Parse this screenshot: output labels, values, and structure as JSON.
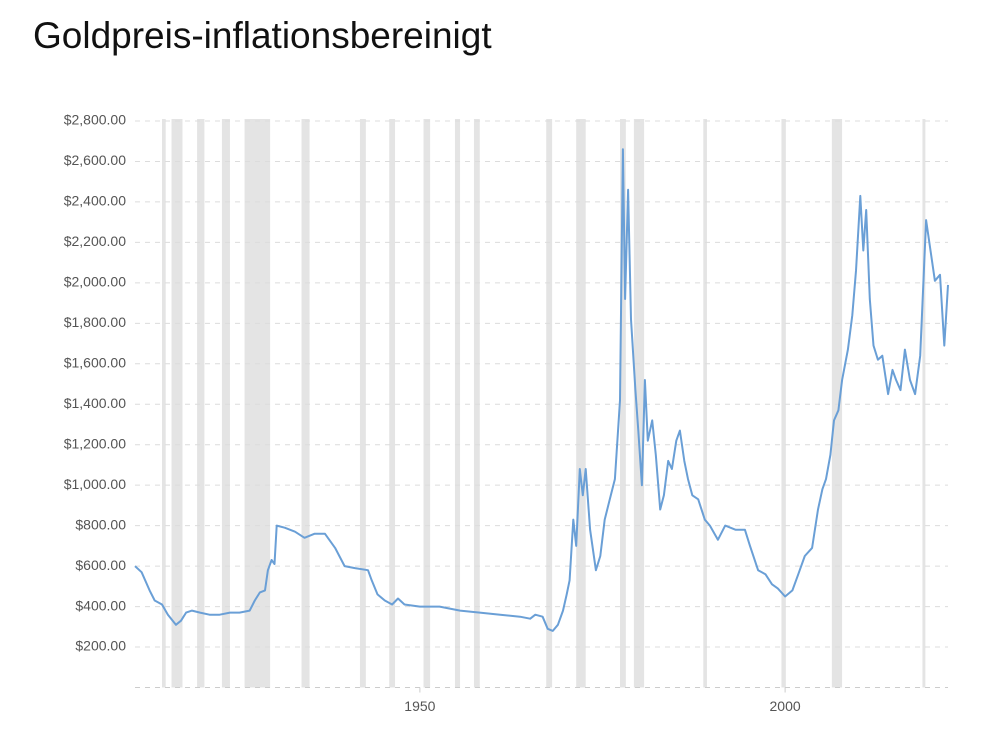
{
  "chart_data": {
    "type": "line",
    "title": "Goldpreis-inflationsbereinigt",
    "x": [
      1911.0,
      1911.9,
      1913.0,
      1913.7,
      1914.7,
      1915.5,
      1916.6,
      1917.3,
      1918.0,
      1918.8,
      1919.9,
      1921.2,
      1922.6,
      1924.0,
      1925.3,
      1926.7,
      1927.4,
      1928.1,
      1928.8,
      1929.2,
      1929.7,
      1930.1,
      1930.4,
      1931.5,
      1932.9,
      1934.2,
      1935.6,
      1937.0,
      1938.4,
      1939.7,
      1941.1,
      1942.9,
      1943.4,
      1944.2,
      1945.2,
      1946.2,
      1947.0,
      1947.9,
      1950.0,
      1952.7,
      1955.5,
      1958.2,
      1961.0,
      1963.7,
      1965.1,
      1965.8,
      1966.8,
      1967.5,
      1968.2,
      1968.9,
      1969.6,
      1970.1,
      1970.5,
      1971.0,
      1971.4,
      1971.9,
      1972.3,
      1972.7,
      1973.3,
      1974.1,
      1974.7,
      1975.3,
      1976.0,
      1976.7,
      1977.4,
      1977.8,
      1978.1,
      1978.5,
      1978.9,
      1979.5,
      1979.9,
      1980.4,
      1980.8,
      1981.2,
      1981.8,
      1982.3,
      1982.9,
      1983.4,
      1984.0,
      1984.5,
      1985.1,
      1985.6,
      1986.2,
      1986.7,
      1987.3,
      1988.1,
      1989.0,
      1989.7,
      1990.8,
      1991.8,
      1993.2,
      1994.5,
      1995.2,
      1996.3,
      1997.3,
      1998.2,
      1999.0,
      2000.0,
      2001.0,
      2001.8,
      2002.7,
      2003.7,
      2004.5,
      2005.1,
      2005.6,
      2006.2,
      2006.7,
      2007.3,
      2007.8,
      2008.6,
      2009.2,
      2009.7,
      2010.3,
      2010.7,
      2011.1,
      2011.6,
      2012.1,
      2012.7,
      2013.3,
      2014.1,
      2014.7,
      2015.2,
      2015.8,
      2016.4,
      2017.1,
      2017.8,
      2018.5,
      2019.3,
      2019.9,
      2020.5,
      2021.2,
      2021.8,
      2022.3
    ],
    "values": [
      600,
      570,
      480,
      430,
      410,
      360,
      310,
      330,
      370,
      380,
      370,
      360,
      360,
      370,
      370,
      380,
      430,
      470,
      480,
      580,
      630,
      610,
      800,
      790,
      770,
      740,
      760,
      760,
      690,
      600,
      590,
      580,
      530,
      460,
      430,
      410,
      440,
      410,
      400,
      400,
      380,
      370,
      360,
      350,
      340,
      360,
      350,
      290,
      280,
      310,
      380,
      460,
      530,
      830,
      700,
      1080,
      950,
      1080,
      780,
      580,
      650,
      830,
      930,
      1030,
      1420,
      2660,
      1920,
      2460,
      1820,
      1470,
      1270,
      1000,
      1520,
      1220,
      1320,
      1150,
      880,
      950,
      1120,
      1080,
      1220,
      1270,
      1120,
      1030,
      950,
      930,
      830,
      800,
      730,
      800,
      780,
      780,
      700,
      580,
      560,
      510,
      490,
      450,
      480,
      560,
      650,
      690,
      880,
      980,
      1030,
      1150,
      1320,
      1370,
      1520,
      1670,
      1840,
      2060,
      2430,
      2160,
      2360,
      1920,
      1690,
      1620,
      1640,
      1450,
      1570,
      1520,
      1470,
      1670,
      1520,
      1450,
      1640,
      2310,
      2160,
      2010,
      2040,
      1690,
      1990
    ],
    "color": "#6a9fd6",
    "shaded_ranges": [
      [
        1914.7,
        1915.2
      ],
      [
        1916.0,
        1917.5
      ],
      [
        1919.5,
        1920.5
      ],
      [
        1922.9,
        1924.0
      ],
      [
        1926.0,
        1929.5
      ],
      [
        1933.8,
        1934.9
      ],
      [
        1941.8,
        1942.6
      ],
      [
        1945.8,
        1946.6
      ],
      [
        1950.5,
        1951.4
      ],
      [
        1954.8,
        1955.5
      ],
      [
        1957.4,
        1958.2
      ],
      [
        1967.3,
        1968.1
      ],
      [
        1971.4,
        1972.7
      ],
      [
        1977.4,
        1978.2
      ],
      [
        1979.3,
        1980.7
      ],
      [
        1988.8,
        1989.3
      ],
      [
        1999.5,
        2000.1
      ],
      [
        2006.4,
        2007.8
      ],
      [
        2018.8,
        2019.2
      ]
    ],
    "shade_color": "#e4e4e4",
    "xlim": [
      1911,
      2022.3
    ],
    "xticks": [
      1950,
      2000
    ],
    "ylim": [
      0,
      2800
    ],
    "yticks": [
      {
        "value": 200,
        "label": "$200.00"
      },
      {
        "value": 400,
        "label": "$400.00"
      },
      {
        "value": 600,
        "label": "$600.00"
      },
      {
        "value": 800,
        "label": "$800.00"
      },
      {
        "value": 1000,
        "label": "$1,000.00"
      },
      {
        "value": 1200,
        "label": "$1,200.00"
      },
      {
        "value": 1400,
        "label": "$1,400.00"
      },
      {
        "value": 1600,
        "label": "$1,600.00"
      },
      {
        "value": 1800,
        "label": "$1,800.00"
      },
      {
        "value": 2000,
        "label": "$2,000.00"
      },
      {
        "value": 2200,
        "label": "$2,200.00"
      },
      {
        "value": 2400,
        "label": "$2,400.00"
      },
      {
        "value": 2600,
        "label": "$2,600.00"
      },
      {
        "value": 2800,
        "label": "$2,800.00"
      }
    ],
    "grid": true
  }
}
